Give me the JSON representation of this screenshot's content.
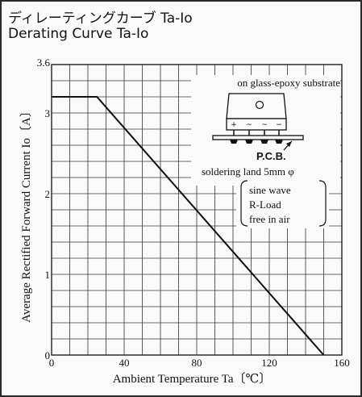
{
  "titles": {
    "japanese": "ディレーティングカーブ Ta-Io",
    "english": "Derating Curve Ta-Io"
  },
  "chart_data": {
    "type": "line",
    "xlabel": "Ambient Temperature Ta〔℃〕",
    "ylabel": "Average Rectified Forward Current Io〔A〕",
    "xlim": [
      0,
      160
    ],
    "ylim": [
      0,
      3.6
    ],
    "x_ticks": [
      0,
      40,
      80,
      120,
      160
    ],
    "x_tick_labels": [
      "0",
      "40",
      "80",
      "120",
      "160"
    ],
    "y_ticks": [
      0,
      1,
      2,
      3,
      3.6
    ],
    "y_tick_labels": [
      "0",
      "1",
      "2",
      "3",
      "3.6"
    ],
    "grid": true,
    "x_grid_step": 10,
    "y_grid_step": 0.2,
    "series": [
      {
        "x": [
          0,
          25,
          150
        ],
        "y": [
          3.2,
          3.2,
          0
        ]
      }
    ]
  },
  "inset": {
    "substrate_label": "on glass-epoxy substrate",
    "pcb_label": "P.C.B.",
    "pin_marks": [
      "+",
      "~",
      "~",
      "−"
    ],
    "land_label": "soldering land 5mm φ",
    "conditions": [
      "sine wave",
      "R-Load",
      "free in air"
    ]
  },
  "colors": {
    "line": "#111111",
    "grid": "#333333",
    "frame": "#2a2a2a",
    "background": "#fafafa"
  }
}
